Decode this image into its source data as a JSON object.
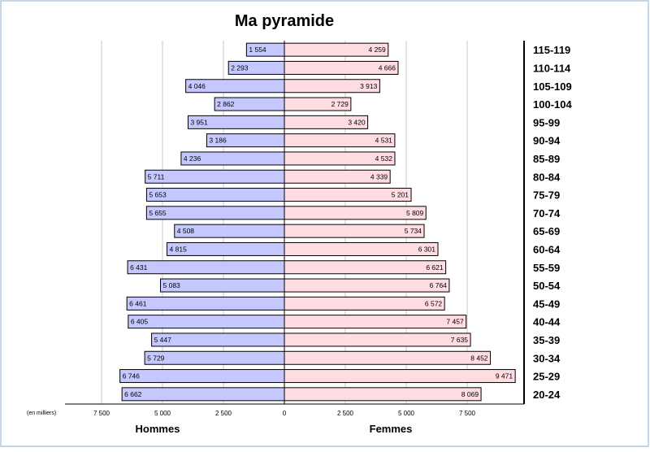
{
  "chart_data": {
    "type": "bar",
    "orientation": "horizontal",
    "title": "Ma pyramide",
    "unit_note": "(en milliers)",
    "categories": [
      "115-119",
      "110-114",
      "105-109",
      "100-104",
      "95-99",
      "90-94",
      "85-89",
      "80-84",
      "75-79",
      "70-74",
      "65-69",
      "60-64",
      "55-59",
      "50-54",
      "45-49",
      "40-44",
      "35-39",
      "30-34",
      "25-29",
      "20-24"
    ],
    "series": [
      {
        "name": "Hommes",
        "side": "left",
        "values": [
          1554,
          2293,
          4046,
          2862,
          3951,
          3186,
          4236,
          5711,
          5653,
          5655,
          4508,
          4815,
          6431,
          5083,
          6461,
          6405,
          5447,
          5729,
          6746,
          6662
        ],
        "labels": [
          "1 554",
          "2 293",
          "4 046",
          "2 862",
          "3 951",
          "3 186",
          "4 236",
          "5 711",
          "5 653",
          "5 655",
          "4 508",
          "4 815",
          "6 431",
          "5 083",
          "6 461",
          "6 405",
          "5 447",
          "5 729",
          "6 746",
          "6 662"
        ]
      },
      {
        "name": "Femmes",
        "side": "right",
        "values": [
          4259,
          4666,
          3913,
          2729,
          3420,
          4531,
          4532,
          4339,
          5201,
          5809,
          5734,
          6301,
          6621,
          6764,
          6572,
          7457,
          7635,
          8452,
          9471,
          8069
        ],
        "labels": [
          "4 259",
          "4 666",
          "3 913",
          "2 729",
          "3 420",
          "4 531",
          "4 532",
          "4 339",
          "5 201",
          "5 809",
          "5 734",
          "6 301",
          "6 621",
          "6 764",
          "6 572",
          "7 457",
          "7 635",
          "8 452",
          "9 471",
          "8 069"
        ]
      }
    ],
    "xlim": [
      0,
      10000
    ],
    "xticks": [
      7500,
      5000,
      2500,
      0,
      2500,
      5000,
      7500
    ],
    "xtick_labels": [
      "7 500",
      "5 000",
      "2 500",
      "0",
      "2 500",
      "5 000",
      "7 500"
    ],
    "grid": true,
    "colors": {
      "hommes": "#c4c8ff",
      "femmes": "#ffdce2",
      "border": "#000000",
      "grid": "#c8c8c8",
      "frame": "#b4c8dc"
    }
  }
}
